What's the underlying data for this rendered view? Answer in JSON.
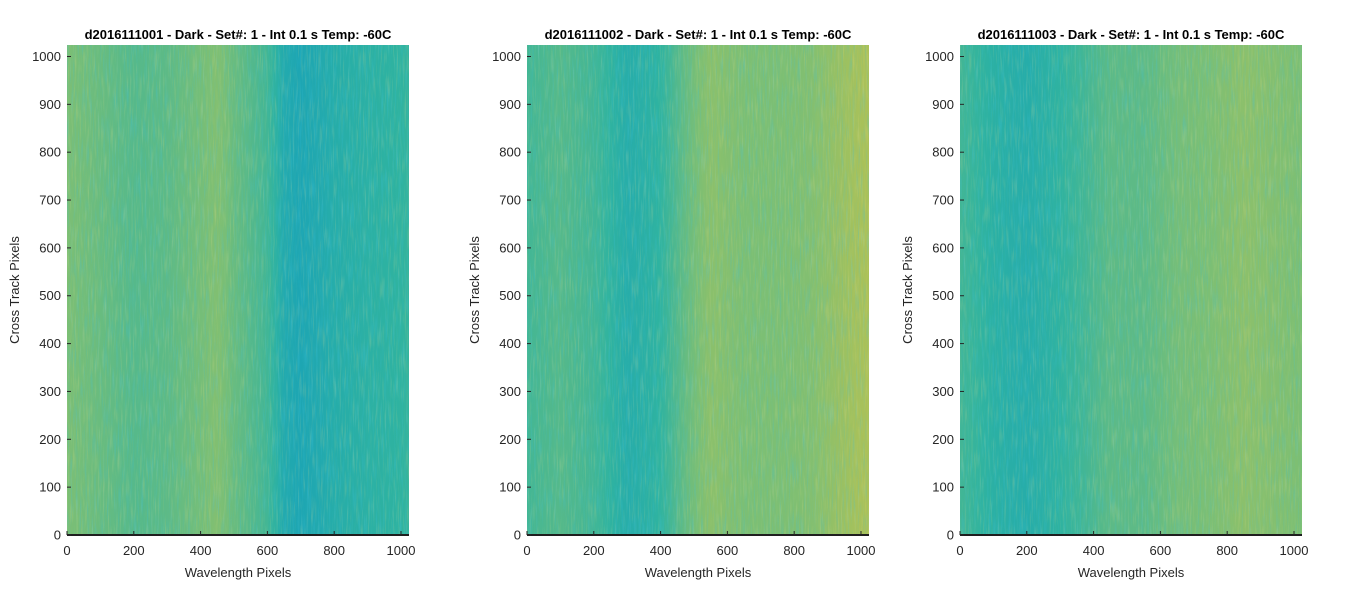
{
  "chart_data": [
    {
      "type": "heatmap",
      "title": "d2016111001 - Dark - Set#: 1 - Int 0.1 s Temp: -60C",
      "xlabel": "Wavelength Pixels",
      "ylabel": "Cross Track Pixels",
      "xlim": [
        0,
        1024
      ],
      "ylim": [
        0,
        1024
      ],
      "xticks": [
        0,
        200,
        400,
        600,
        800,
        1000
      ],
      "yticks": [
        0,
        100,
        200,
        300,
        400,
        500,
        600,
        700,
        800,
        900,
        1000
      ],
      "column_profile": {
        "x": [
          0,
          100,
          200,
          300,
          400,
          450,
          500,
          600,
          650,
          700,
          800,
          900,
          1000,
          1024
        ],
        "level": [
          0.6,
          0.55,
          0.5,
          0.52,
          0.58,
          0.62,
          0.55,
          0.45,
          0.33,
          0.3,
          0.35,
          0.38,
          0.4,
          0.42
        ]
      }
    },
    {
      "type": "heatmap",
      "title": "d2016111002 - Dark - Set#: 1 - Int 0.1 s Temp: -60C",
      "xlabel": "Wavelength Pixels",
      "ylabel": "Cross Track Pixels",
      "xlim": [
        0,
        1024
      ],
      "ylim": [
        0,
        1024
      ],
      "xticks": [
        0,
        200,
        400,
        600,
        800,
        1000
      ],
      "yticks": [
        0,
        100,
        200,
        300,
        400,
        500,
        600,
        700,
        800,
        900,
        1000
      ],
      "column_profile": {
        "x": [
          0,
          100,
          200,
          300,
          400,
          480,
          550,
          650,
          750,
          850,
          950,
          1024
        ],
        "level": [
          0.45,
          0.5,
          0.45,
          0.35,
          0.4,
          0.55,
          0.65,
          0.6,
          0.6,
          0.62,
          0.7,
          0.75
        ]
      }
    },
    {
      "type": "heatmap",
      "title": "d2016111003 - Dark - Set#: 1 - Int 0.1 s Temp: -60C",
      "xlabel": "Wavelength Pixels",
      "ylabel": "Cross Track Pixels",
      "xlim": [
        0,
        1024
      ],
      "ylim": [
        0,
        1024
      ],
      "xticks": [
        0,
        200,
        400,
        600,
        800,
        1000
      ],
      "yticks": [
        0,
        100,
        200,
        300,
        400,
        500,
        600,
        700,
        800,
        900,
        1000
      ],
      "column_profile": {
        "x": [
          0,
          100,
          200,
          300,
          370,
          450,
          550,
          650,
          750,
          850,
          950,
          1024
        ],
        "level": [
          0.45,
          0.38,
          0.35,
          0.4,
          0.45,
          0.52,
          0.52,
          0.58,
          0.6,
          0.65,
          0.62,
          0.6
        ]
      }
    }
  ],
  "colormap": [
    "#0072bd",
    "#0b99c6",
    "#2fb3a0",
    "#7cbf74",
    "#bcc24e",
    "#e0c53a"
  ]
}
